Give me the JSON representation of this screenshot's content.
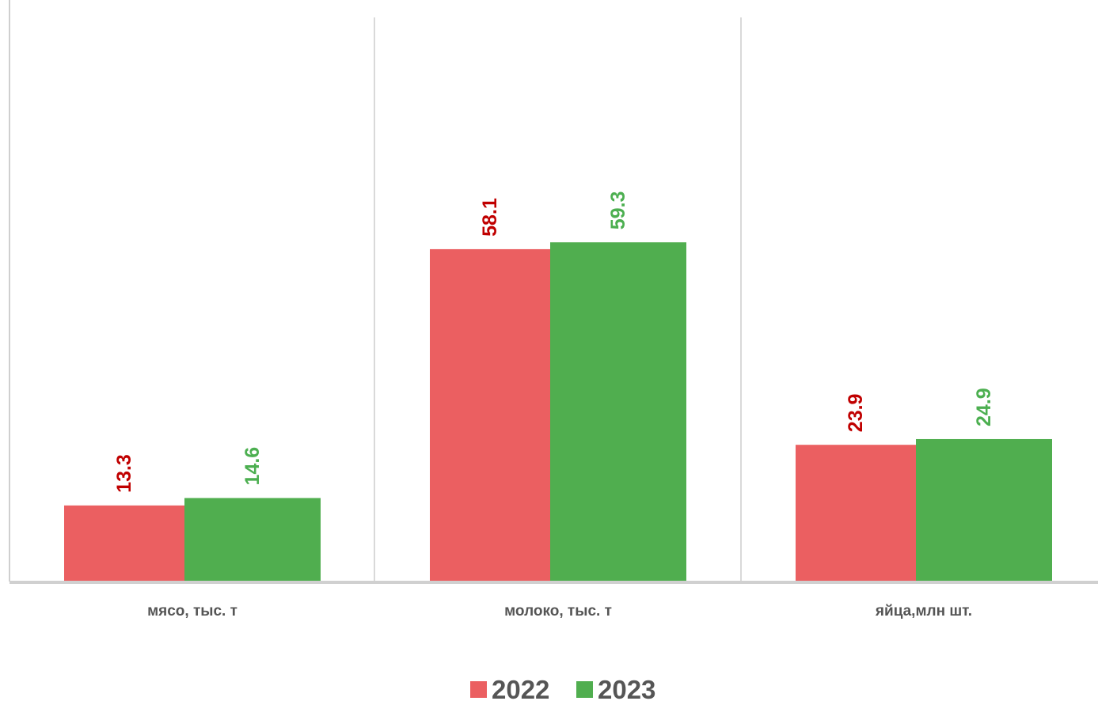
{
  "chart_data": {
    "type": "bar",
    "categories": [
      "мясо, тыс. т",
      "молоко, тыс. т",
      "яйца,млн шт."
    ],
    "series": [
      {
        "name": "2022",
        "values": [
          13.3,
          58.1,
          23.9
        ],
        "color": "#EB5F61",
        "label_color": "#C00000"
      },
      {
        "name": "2023",
        "values": [
          14.6,
          59.3,
          24.9
        ],
        "color": "#50AE4F",
        "label_color": "#4CAF50"
      }
    ],
    "title": "",
    "xlabel": "",
    "ylabel": "",
    "ylim": [
      0,
      100
    ],
    "grid": false,
    "legend": "bottom-center",
    "axis_color": "#D0D0D0",
    "separator_color": "#D9D9D9"
  }
}
